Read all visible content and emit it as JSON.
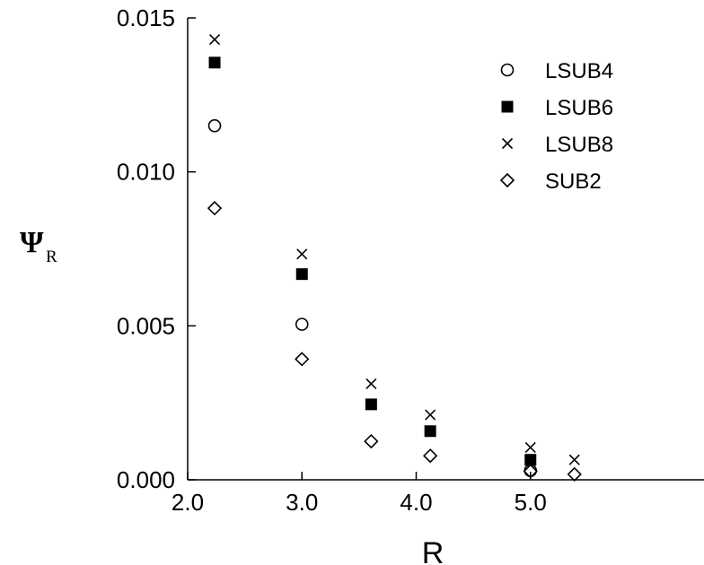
{
  "chart_data": {
    "type": "scatter",
    "title": "",
    "xlabel": "R",
    "ylabel": "Ψ",
    "ylabel_subscript": "R",
    "xlim": [
      2.0,
      5.5
    ],
    "ylim": [
      0.0,
      0.015
    ],
    "x_ticks": [
      2.0,
      3.0,
      4.0,
      5.0
    ],
    "x_tick_labels": [
      "2.0",
      "3.0",
      "4.0",
      "5.0"
    ],
    "y_ticks": [
      0.0,
      0.005,
      0.01,
      0.015
    ],
    "y_tick_labels": [
      "0.000",
      "0.005",
      "0.010",
      "0.015"
    ],
    "grid": false,
    "legend_position": "top-right",
    "series": [
      {
        "name": "LSUB4",
        "marker": "open-circle",
        "x": [
          2.236,
          3.0,
          5.0
        ],
        "y": [
          0.0115,
          0.00505,
          0.0003
        ]
      },
      {
        "name": "LSUB6",
        "marker": "filled-square",
        "x": [
          2.236,
          3.0,
          3.606,
          4.123,
          5.0
        ],
        "y": [
          0.01355,
          0.00668,
          0.00245,
          0.00158,
          0.00065
        ]
      },
      {
        "name": "LSUB8",
        "marker": "x-cross",
        "x": [
          2.236,
          3.0,
          3.606,
          4.123,
          5.0,
          5.385
        ],
        "y": [
          0.0143,
          0.00733,
          0.00312,
          0.00211,
          0.00105,
          0.00065
        ]
      },
      {
        "name": "SUB2",
        "marker": "open-diamond",
        "x": [
          2.236,
          3.0,
          3.606,
          4.123,
          5.0,
          5.385
        ],
        "y": [
          0.00882,
          0.00392,
          0.00125,
          0.00078,
          0.00028,
          0.00018
        ]
      }
    ]
  }
}
